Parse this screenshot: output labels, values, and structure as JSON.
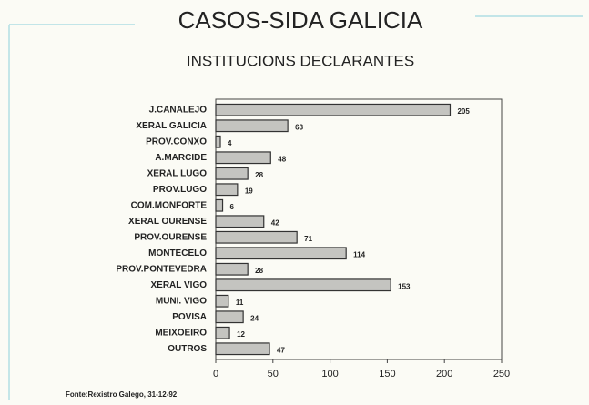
{
  "chart_data": {
    "type": "barh",
    "title": "CASOS-SIDA GALICIA",
    "subtitle": "INSTITUCIONS DECLARANTES",
    "footnote": "Fonte:Rexistro Galego, 31-12-92",
    "categories": [
      "J.CANALEJO",
      "XERAL GALICIA",
      "PROV.CONXO",
      "A.MARCIDE",
      "XERAL LUGO",
      "PROV.LUGO",
      "COM.MONFORTE",
      "XERAL OURENSE",
      "PROV.OURENSE",
      "MONTECELO",
      "PROV.PONTEVEDRA",
      "XERAL VIGO",
      "MUNI. VIGO",
      "POVISA",
      "MEIXOEIRO",
      "OUTROS"
    ],
    "values": [
      205,
      63,
      4,
      48,
      28,
      19,
      6,
      42,
      71,
      114,
      28,
      153,
      11,
      24,
      12,
      47
    ],
    "color": "#c4c4c0",
    "xlim": [
      0,
      250
    ],
    "xticks": [
      0,
      50,
      100,
      150,
      200,
      250
    ]
  }
}
